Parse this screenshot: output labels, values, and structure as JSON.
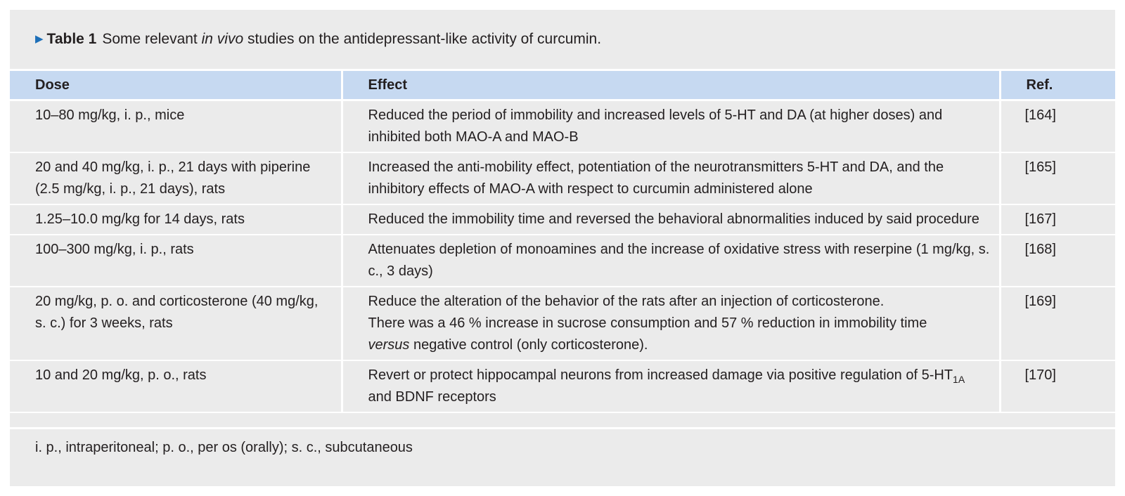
{
  "caption": {
    "marker": "▶",
    "label": "Table 1",
    "text_before": "Some relevant ",
    "text_italic": "in vivo",
    "text_after": " studies on the antidepressant-like activity of curcumin."
  },
  "table": {
    "headers": [
      "Dose",
      "Effect",
      "Ref."
    ],
    "rows": [
      {
        "dose": "10–80 mg/kg, i. p., mice",
        "effect": "Reduced the period of immobility and increased levels of 5-HT and DA (at higher doses) and inhibited both MAO-A and MAO-B",
        "ref": "[164]"
      },
      {
        "dose": "20 and 40 mg/kg, i. p., 21 days with piperine (2.5 mg/kg, i. p., 21 days), rats",
        "effect": "Increased the anti-mobility effect, potentiation of the neurotransmitters 5-HT and DA, and the inhibitory effects of MAO-A with respect to curcumin administered alone",
        "ref": "[165]"
      },
      {
        "dose": "1.25–10.0 mg/kg for 14 days, rats",
        "effect": "Reduced the immobility time and reversed the behavioral abnormalities induced by said procedure",
        "ref": "[167]"
      },
      {
        "dose": "100–300 mg/kg, i. p., rats",
        "effect": "Attenuates depletion of monoamines and the increase of oxidative stress with reserpine (1 mg/kg, s. c., 3 days)",
        "ref": "[168]"
      },
      {
        "dose": "20 mg/kg, p. o. and corticosterone (40 mg/kg, s. c.) for 3 weeks, rats",
        "effect_line1": "Reduce the alteration of the behavior of the rats after an injection of corticosterone.",
        "effect_line2": "There was a 46 % increase in sucrose consumption and 57 % reduction in immobility time",
        "effect_italic": "versus",
        "effect_after": " negative control (only corticosterone).",
        "ref": "[169]"
      },
      {
        "dose": "10 and 20 mg/kg, p. o., rats",
        "effect_before": "Revert or protect hippocampal neurons from increased damage via positive regulation of 5-HT",
        "effect_sub": "1A",
        "effect_after": " and BDNF receptors",
        "ref": "[170]"
      }
    ]
  },
  "footnote": "i. p., intraperitoneal; p. o., per os (orally); s. c., subcutaneous",
  "colors": {
    "panel_background": "#ebebeb",
    "header_background": "#c6d9f1",
    "marker": "#1d6fb8",
    "text": "#231f20"
  }
}
